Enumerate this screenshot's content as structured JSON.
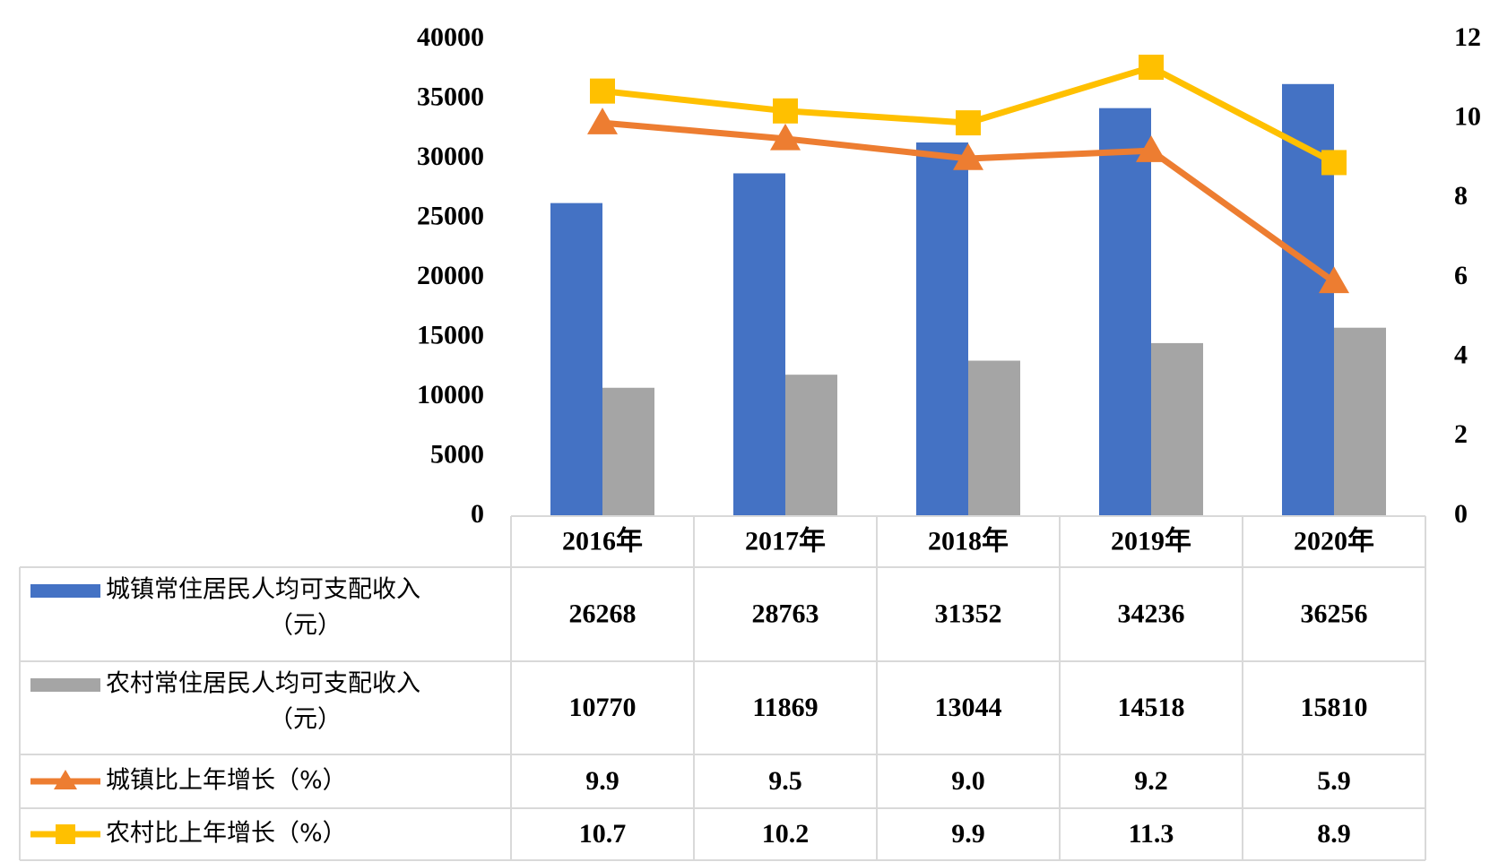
{
  "chart_data": {
    "type": "bar",
    "categories": [
      "2016年",
      "2017年",
      "2018年",
      "2019年",
      "2020年"
    ],
    "series": [
      {
        "name_lines": [
          "城镇常住居民人均可支配收入",
          "（元）"
        ],
        "type": "bar",
        "axis": "left",
        "color": "#4472C4",
        "values": [
          26268,
          28763,
          31352,
          34236,
          36256
        ],
        "display": [
          "26268",
          "28763",
          "31352",
          "34236",
          "36256"
        ]
      },
      {
        "name_lines": [
          "农村常住居民人均可支配收入",
          "（元）"
        ],
        "type": "bar",
        "axis": "left",
        "color": "#A5A5A5",
        "values": [
          10770,
          11869,
          13044,
          14518,
          15810
        ],
        "display": [
          "10770",
          "11869",
          "13044",
          "14518",
          "15810"
        ]
      },
      {
        "name_lines": [
          "城镇比上年增长（%）"
        ],
        "type": "line",
        "marker": "triangle",
        "axis": "right",
        "color": "#ED7D31",
        "values": [
          9.9,
          9.5,
          9.0,
          9.2,
          5.9
        ],
        "display": [
          "9.9",
          "9.5",
          "9.0",
          "9.2",
          "5.9"
        ]
      },
      {
        "name_lines": [
          "农村比上年增长（%）"
        ],
        "type": "line",
        "marker": "square",
        "axis": "right",
        "color": "#FFC000",
        "values": [
          10.7,
          10.2,
          9.9,
          11.3,
          8.9
        ],
        "display": [
          "10.7",
          "10.2",
          "9.9",
          "11.3",
          "8.9"
        ]
      }
    ],
    "y_left": {
      "ylim": [
        0,
        40000
      ],
      "ticks": [
        0,
        5000,
        10000,
        15000,
        20000,
        25000,
        30000,
        35000,
        40000
      ]
    },
    "y_right": {
      "ylim": [
        0,
        12
      ],
      "ticks": [
        0,
        2,
        4,
        6,
        8,
        10,
        12
      ]
    },
    "data_table": true,
    "grid": false
  }
}
